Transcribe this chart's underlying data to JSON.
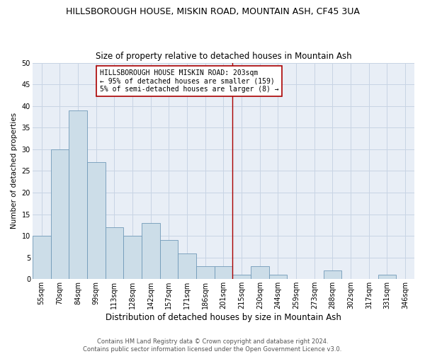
{
  "title": "HILLSBOROUGH HOUSE, MISKIN ROAD, MOUNTAIN ASH, CF45 3UA",
  "subtitle": "Size of property relative to detached houses in Mountain Ash",
  "xlabel": "Distribution of detached houses by size in Mountain Ash",
  "ylabel": "Number of detached properties",
  "categories": [
    "55sqm",
    "70sqm",
    "84sqm",
    "99sqm",
    "113sqm",
    "128sqm",
    "142sqm",
    "157sqm",
    "171sqm",
    "186sqm",
    "201sqm",
    "215sqm",
    "230sqm",
    "244sqm",
    "259sqm",
    "273sqm",
    "288sqm",
    "302sqm",
    "317sqm",
    "331sqm",
    "346sqm"
  ],
  "values": [
    10,
    30,
    39,
    27,
    12,
    10,
    13,
    9,
    6,
    3,
    3,
    1,
    3,
    1,
    0,
    0,
    2,
    0,
    0,
    1,
    0
  ],
  "bar_color": "#ccdde8",
  "bar_edge_color": "#7099b8",
  "vertical_line_x": 10.5,
  "vertical_line_color": "#aa0000",
  "annotation_text": "HILLSBOROUGH HOUSE MISKIN ROAD: 203sqm\n← 95% of detached houses are smaller (159)\n5% of semi-detached houses are larger (8) →",
  "annotation_box_color": "#ffffff",
  "annotation_box_edge": "#aa0000",
  "ylim": [
    0,
    50
  ],
  "yticks": [
    0,
    5,
    10,
    15,
    20,
    25,
    30,
    35,
    40,
    45,
    50
  ],
  "grid_color": "#c8d4e4",
  "background_color": "#e8eef6",
  "footer_text": "Contains HM Land Registry data © Crown copyright and database right 2024.\nContains public sector information licensed under the Open Government Licence v3.0.",
  "title_fontsize": 9,
  "subtitle_fontsize": 8.5,
  "xlabel_fontsize": 8.5,
  "ylabel_fontsize": 7.5,
  "tick_fontsize": 7,
  "annotation_fontsize": 7,
  "footer_fontsize": 6
}
